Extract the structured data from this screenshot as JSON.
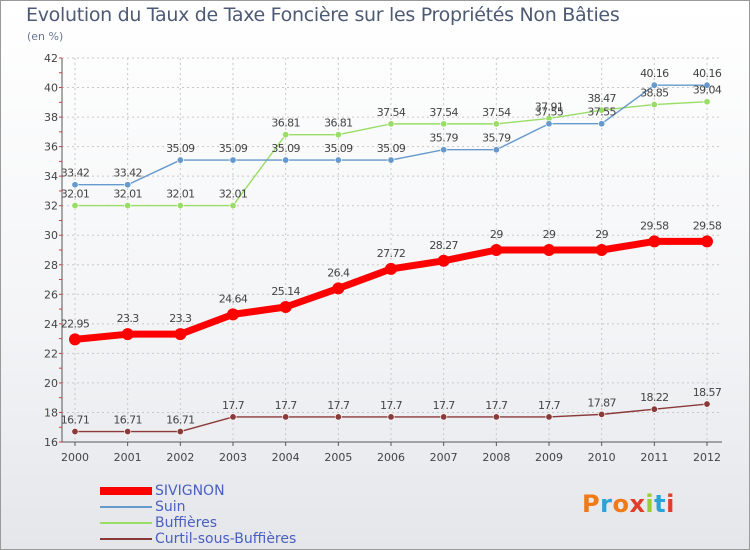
{
  "title": "Evolution du Taux de Taxe Foncière sur les Propriétés Non Bâties",
  "subtitle": "(en %)",
  "logo_text": "Proxiti",
  "chart_data": {
    "type": "line",
    "title": "Evolution du Taux de Taxe Foncière sur les Propriétés Non Bâties",
    "ylabel": "(en %)",
    "x": [
      2000,
      2001,
      2002,
      2003,
      2004,
      2005,
      2006,
      2007,
      2008,
      2009,
      2010,
      2011,
      2012
    ],
    "ylim": [
      16,
      42
    ],
    "yticks": [
      16,
      18,
      20,
      22,
      24,
      26,
      28,
      30,
      32,
      34,
      36,
      38,
      40,
      42
    ],
    "grid": true,
    "legend_position": "bottom-left",
    "series": [
      {
        "name": "SIVIGNON",
        "color": "#ff0000",
        "values": [
          22.95,
          23.3,
          23.3,
          24.64,
          25.14,
          26.4,
          27.72,
          28.27,
          29,
          29,
          29,
          29.58,
          29.58
        ],
        "labels": [
          "22.95",
          "23.3",
          "23.3",
          "24.64",
          "25.14",
          "26.4",
          "27.72",
          "28.27",
          "29",
          "29",
          "29",
          "29.58",
          "29.58"
        ]
      },
      {
        "name": "Suin",
        "color": "#6699cc",
        "values": [
          33.42,
          33.42,
          35.09,
          35.09,
          35.09,
          35.09,
          35.09,
          35.79,
          35.79,
          37.55,
          37.55,
          40.16,
          40.16
        ],
        "labels": [
          "33.42",
          "33.42",
          "35.09",
          "35.09",
          "35.09",
          "35.09",
          "35.09",
          "35.79",
          "35.79",
          "37.55",
          "37.55",
          "40.16",
          "40.16"
        ]
      },
      {
        "name": "Buffières",
        "color": "#99dd66",
        "values": [
          32.01,
          32.01,
          32.01,
          32.01,
          36.81,
          36.81,
          37.54,
          37.54,
          37.54,
          37.91,
          38.47,
          38.85,
          39.04
        ],
        "labels": [
          "32.01",
          "32.01",
          "32.01",
          "32.01",
          "36.81",
          "36.81",
          "37.54",
          "37.54",
          "37.54",
          "37.91",
          "38.47",
          "38.85",
          "39.04"
        ]
      },
      {
        "name": "Curtil-sous-Buffières",
        "color": "#8b3a3a",
        "values": [
          16.71,
          16.71,
          16.71,
          17.7,
          17.7,
          17.7,
          17.7,
          17.7,
          17.7,
          17.7,
          17.87,
          18.22,
          18.57
        ],
        "labels": [
          "16.71",
          "16.71",
          "16.71",
          "17.7",
          "17.7",
          "17.7",
          "17.7",
          "17.7",
          "17.7",
          "17.7",
          "17.87",
          "18.22",
          "18.57"
        ]
      }
    ]
  }
}
